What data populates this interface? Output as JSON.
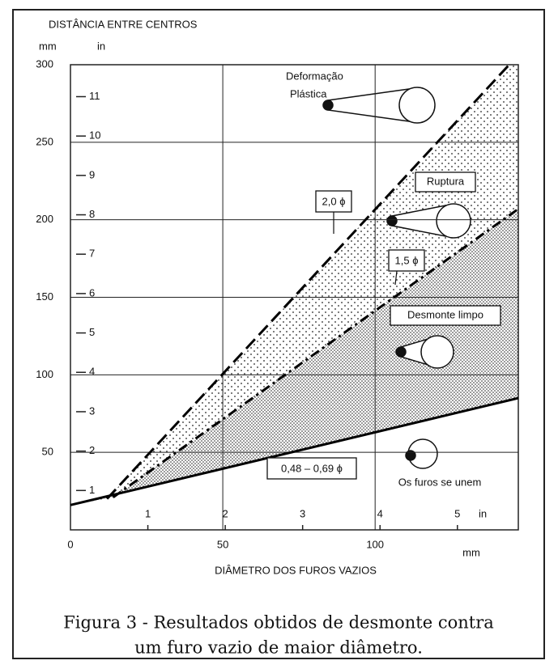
{
  "chart_data": {
    "type": "line",
    "title": "DISTÂNCIA ENTRE CENTROS",
    "y_label": "mm",
    "y2_label": "in",
    "x_label": "DIÂMETRO DOS FUROS VAZIOS",
    "x_unit": "mm",
    "x2_unit": "in",
    "caption": [
      "Figura 3 - Resultados obtidos de desmonte contra",
      "um furo vazio de maior diâmetro."
    ],
    "xlim": [
      0,
      147
    ],
    "xticks": [
      0,
      50,
      100
    ],
    "x2lim": [
      0,
      5.787
    ],
    "x2ticks": [
      1,
      2,
      3,
      4,
      5
    ],
    "ylim": [
      0,
      300
    ],
    "yticks": [
      50,
      100,
      150,
      200,
      250,
      300
    ],
    "y2lim": [
      0,
      11.811
    ],
    "y2ticks": [
      1,
      2,
      3,
      4,
      5,
      6,
      7,
      8,
      9,
      10,
      11
    ],
    "grid": true,
    "series": [
      {
        "name": "2,0 ϕ",
        "color": "#000000",
        "style": "dashed",
        "x": [
          12,
          144
        ],
        "values": [
          20,
          300
        ]
      },
      {
        "name": "1,5 ϕ",
        "color": "#000000",
        "style": "dashdot",
        "x": [
          14,
          147
        ],
        "values": [
          21,
          207
        ]
      },
      {
        "name": "0,48 – 0,69 ϕ",
        "color": "#000000",
        "style": "solid",
        "x": [
          0,
          147
        ],
        "values": [
          16,
          85
        ]
      }
    ],
    "annotations": [
      "Deformação",
      "Plástica",
      "Ruptura",
      "Desmonte limpo",
      "Os furos se unem"
    ]
  }
}
